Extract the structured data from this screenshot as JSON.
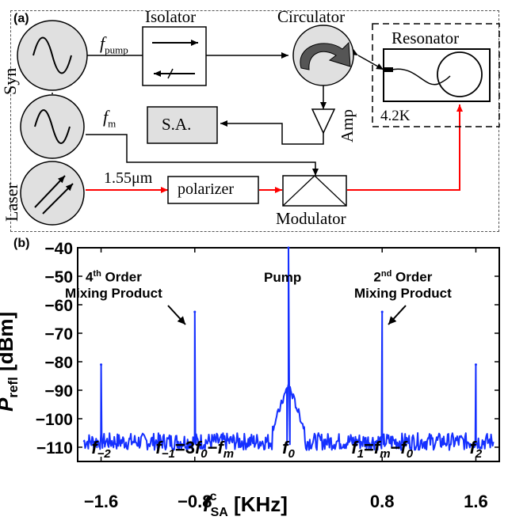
{
  "panel_a": {
    "label": "(a)",
    "synth_label": "Syn",
    "laser_label": "Laser",
    "f_pump_symbol": "f",
    "f_pump_sub": "pump",
    "f_m_symbol": "f",
    "f_m_sub": "m",
    "isolator_label": "Isolator",
    "circulator_label": "Circulator",
    "resonator_label": "Resonator",
    "temp_label": "4.2K",
    "amp_label": "Amp",
    "sa_label": "S.A.",
    "wavelength_label": "1.55μm",
    "polarizer_label": "polarizer",
    "modulator_label": "Modulator",
    "optical_line_color": "#ff0000",
    "sa_fill_color": "#e0e0e0"
  },
  "panel_b": {
    "label": "(b)",
    "ylabel_main": "P",
    "ylabel_sub": "refl",
    "ylabel_unit": "[dBm]",
    "xlabel_main": "f",
    "xlabel_sub": "SA",
    "xlabel_sup": "c",
    "xlabel_unit": "[KHz]",
    "annotations": {
      "fourth_order_num": "4",
      "fourth_order_sup": "th",
      "fourth_order_rest": " Order",
      "fourth_order_line2": "Mixing Product",
      "pump": "Pump",
      "second_order_num": "2",
      "second_order_sup": "nd",
      "second_order_rest": " Order",
      "second_order_line2": "Mixing Product"
    },
    "peak_labels": [
      {
        "parts": [
          [
            "f",
            "i"
          ],
          [
            "−2",
            "sub"
          ]
        ],
        "x": -1.6
      },
      {
        "parts": [
          [
            "f",
            "i"
          ],
          [
            "−1",
            "sub"
          ],
          [
            "=3",
            "n"
          ],
          [
            "f",
            "i"
          ],
          [
            "0",
            "sub"
          ],
          [
            "−",
            "n"
          ],
          [
            "f",
            "i"
          ],
          [
            "m",
            "sub"
          ]
        ],
        "x": -0.8
      },
      {
        "parts": [
          [
            "f",
            "i"
          ],
          [
            "0",
            "sub"
          ]
        ],
        "x": 0
      },
      {
        "parts": [
          [
            "f",
            "i"
          ],
          [
            "1",
            "sub"
          ],
          [
            "=",
            "n"
          ],
          [
            "f",
            "i"
          ],
          [
            "m",
            "sub"
          ],
          [
            "−",
            "n"
          ],
          [
            "f",
            "i"
          ],
          [
            "0",
            "sub"
          ]
        ],
        "x": 0.8
      },
      {
        "parts": [
          [
            "f",
            "i"
          ],
          [
            "2",
            "sub"
          ]
        ],
        "x": 1.6
      }
    ]
  },
  "chart_data": {
    "type": "line",
    "xlabel": "f_SA^c [KHz]",
    "ylabel": "P_refl [dBm]",
    "xlim": [
      -1.8,
      1.8
    ],
    "ylim": [
      -115,
      -40
    ],
    "xticks": [
      -1.6,
      -0.8,
      0.8,
      1.6
    ],
    "xtick_labels": [
      "-1.6",
      "-0.8",
      "0.8",
      "1.6"
    ],
    "yticks": [
      -40,
      -50,
      -60,
      -70,
      -80,
      -90,
      -100,
      -110
    ],
    "ytick_labels": [
      "−40",
      "−50",
      "−60",
      "−70",
      "−80",
      "−90",
      "−100",
      "−110"
    ],
    "line_color": "#1530ff",
    "noise_floor": -108,
    "peaks": [
      {
        "x": -1.6,
        "y": -81
      },
      {
        "x": -0.8,
        "y": -62.5
      },
      {
        "x": 0.0,
        "y": -40
      },
      {
        "x": 0.8,
        "y": -62.5
      },
      {
        "x": 1.6,
        "y": -81
      }
    ],
    "pump_shoulder": [
      {
        "x": -0.12,
        "y": -102
      },
      {
        "x": -0.06,
        "y": -96
      },
      {
        "x": -0.02,
        "y": -88
      },
      {
        "x": 0.02,
        "y": -88
      },
      {
        "x": 0.06,
        "y": -96
      },
      {
        "x": 0.12,
        "y": -102
      }
    ]
  }
}
